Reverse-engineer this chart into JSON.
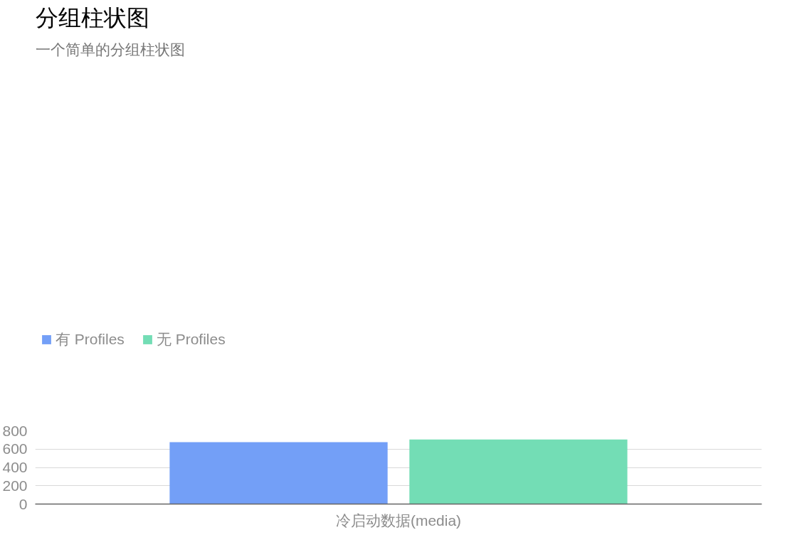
{
  "chart_data": {
    "type": "bar",
    "title": "分组柱状图",
    "subtitle": "一个简单的分组柱状图",
    "categories": [
      "冷启动数据(media)"
    ],
    "series": [
      {
        "name": "有 Profiles",
        "color": "#739ff7",
        "values": [
          675
        ]
      },
      {
        "name": "无 Profiles",
        "color": "#73ddb5",
        "values": [
          705
        ]
      }
    ],
    "ylim": [
      0,
      800
    ],
    "yticks": [
      0,
      200,
      400,
      600,
      800
    ],
    "grid": "y",
    "legend": "top left"
  }
}
